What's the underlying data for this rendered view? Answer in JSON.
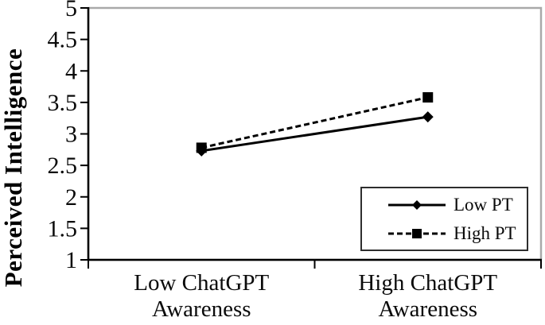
{
  "chart_data": {
    "type": "line",
    "title": "",
    "xlabel": "",
    "ylabel": "Perceived Intelligence",
    "categories": [
      "Low ChatGPT Awareness",
      "High ChatGPT Awareness"
    ],
    "series": [
      {
        "name": "Low PT",
        "values": [
          2.73,
          3.27
        ],
        "line_style": "solid",
        "marker": "diamond",
        "color": "#000000"
      },
      {
        "name": "High PT",
        "values": [
          2.78,
          3.58
        ],
        "line_style": "dashed",
        "marker": "square",
        "color": "#000000"
      }
    ],
    "ylim": [
      1,
      5
    ],
    "yticks": [
      5,
      4.5,
      4,
      3.5,
      3,
      2.5,
      2,
      1.5,
      1
    ],
    "grid": false,
    "legend_position": "lower-right",
    "colors": {
      "series": "#000000",
      "axis": "#000000",
      "plot_border": "#a9a9a9",
      "background": "#ffffff",
      "text": "#0a0a0a"
    }
  }
}
